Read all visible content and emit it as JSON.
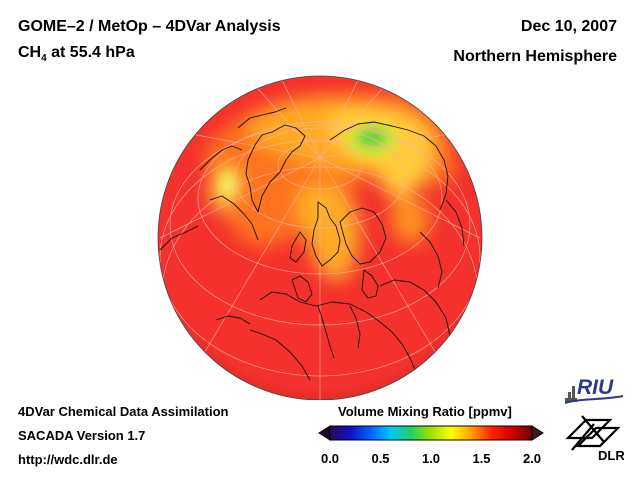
{
  "header": {
    "title": "GOME–2 / MetOp – 4DVar Analysis",
    "species_prefix": "CH",
    "species_sub": "4",
    "species_suffix": " at 55.4 hPa",
    "date": "Dec 10, 2007",
    "region": "Northern Hemisphere"
  },
  "footer": {
    "line1": "4DVar Chemical Data Assimilation",
    "line2": "SACADA Version 1.7",
    "line3": "http://wdc.dlr.de"
  },
  "colorbar": {
    "label": "Volume Mixing Ratio [ppmv]",
    "ticks": [
      "0.0",
      "0.5",
      "1.0",
      "1.5",
      "2.0"
    ],
    "min": 0.0,
    "max": 2.0,
    "colors": [
      "#2a0a5a",
      "#1010c0",
      "#0060ff",
      "#00c8ff",
      "#20d060",
      "#a0e000",
      "#ffff00",
      "#ffa000",
      "#ff2000",
      "#d00000",
      "#700000"
    ]
  },
  "map": {
    "background_value_color": "#f4312c",
    "projection": "orthographic, north polar view"
  },
  "logos": {
    "riu": "RIU",
    "dlr": "DLR"
  }
}
